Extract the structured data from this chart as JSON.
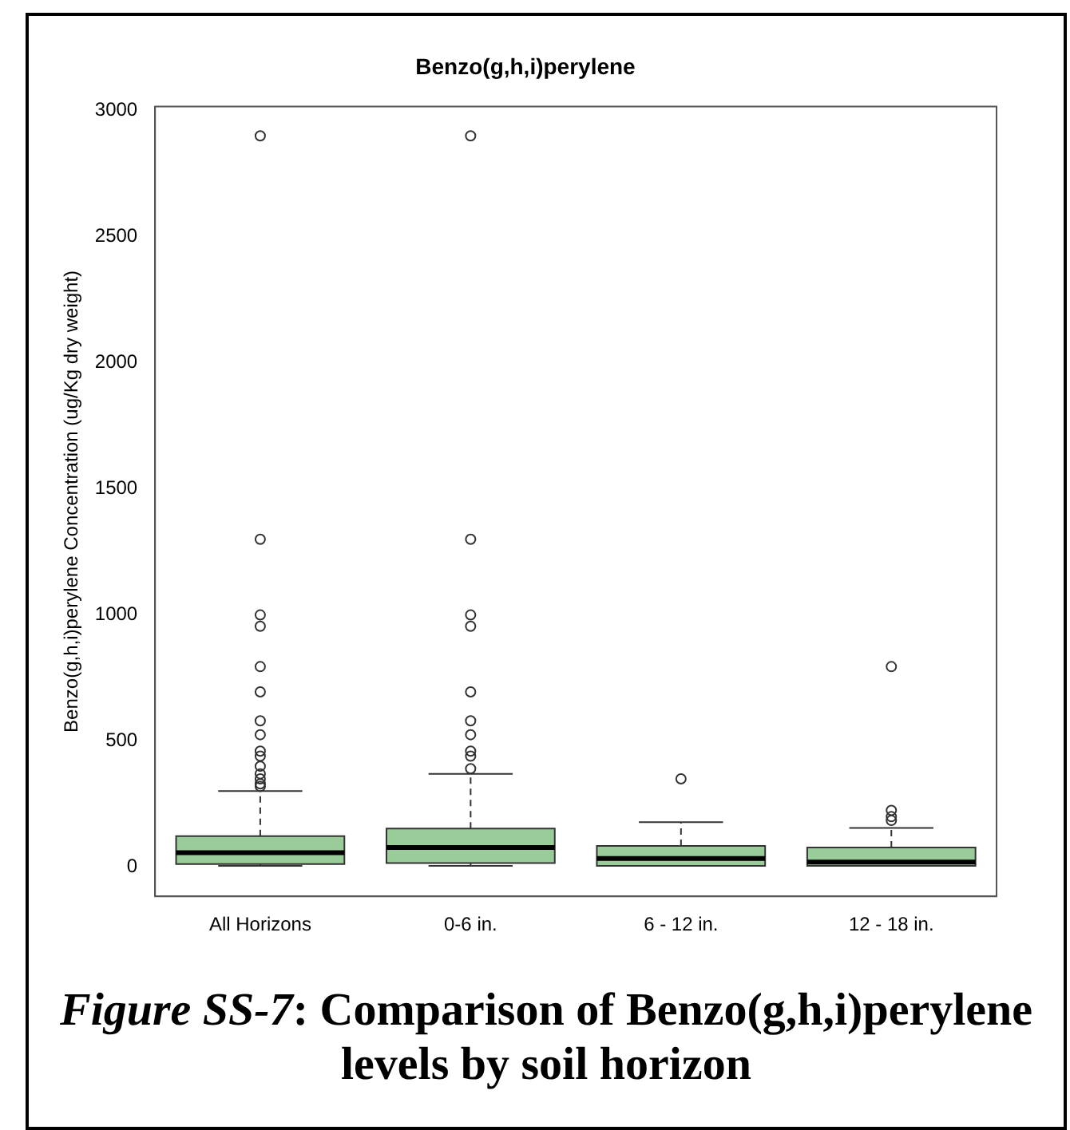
{
  "chart_data": {
    "type": "box",
    "title": "Benzo(g,h,i)perylene",
    "ylabel": "Benzo(g,h,i)perylene Concentration (ug/Kg dry weight)",
    "categories": [
      "All Horizons",
      "0-6 in.",
      "6 - 12 in.",
      "12 - 18 in."
    ],
    "color": "#99cc99",
    "ylim": [
      -116,
      3016
    ],
    "yticks": [
      0,
      500,
      1000,
      1500,
      2000,
      2500,
      3000
    ],
    "grid": false,
    "boxes": [
      {
        "low": 5,
        "q1": 12,
        "median": 57,
        "q3": 123,
        "high": 302,
        "outliers": [
          2900,
          1300,
          1000,
          955,
          795,
          695,
          580,
          525,
          460,
          440,
          400,
          370,
          350,
          330,
          320
        ]
      },
      {
        "low": 5,
        "q1": 16,
        "median": 78,
        "q3": 153,
        "high": 370,
        "outliers": [
          2900,
          1300,
          1000,
          955,
          695,
          580,
          525,
          460,
          440,
          390
        ]
      },
      {
        "low": 5,
        "q1": 5,
        "median": 34,
        "q3": 84,
        "high": 178,
        "outliers": [
          350
        ]
      },
      {
        "low": 5,
        "q1": 5,
        "median": 20,
        "q3": 78,
        "high": 155,
        "outliers": [
          795,
          225,
          200,
          185
        ]
      }
    ],
    "annotations": [
      "Figure SS-7: Comparison of Benzo(g,h,i)perylene levels by soil horizon"
    ]
  }
}
